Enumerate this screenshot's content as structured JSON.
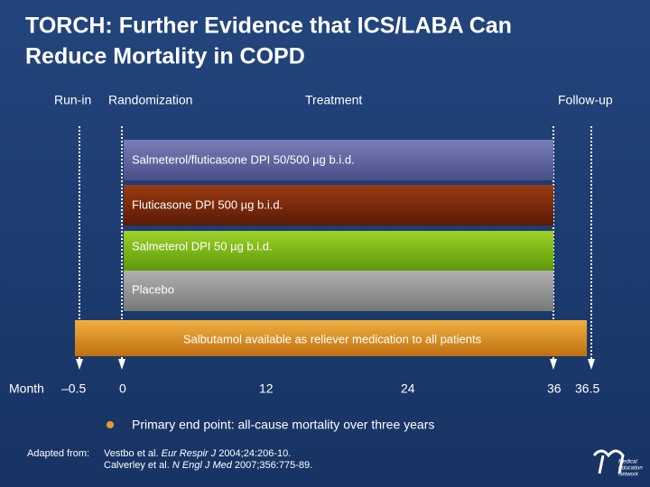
{
  "title": [
    "TORCH: Further Evidence that ICS/LABA Can",
    "Reduce Mortality in COPD"
  ],
  "phases": [
    "Run-in",
    "Randomization",
    "Treatment",
    "Follow-up"
  ],
  "arms": [
    "Salmeterol/fluticasone DPI 50/500 µg b.i.d.",
    "Fluticasone DPI 500 µg b.i.d.",
    "Salmeterol DPI 50 µg b.i.d.",
    "Placebo"
  ],
  "rescue": "Salbutamol available as reliever medication to all patients",
  "axis": {
    "label": "Month",
    "timepoints": [
      "–0.5",
      "0",
      "12",
      "24",
      "36",
      "36.5"
    ]
  },
  "endpoint": "Primary end point: all-cause mortality over three years",
  "references": {
    "label": "Adapted from:",
    "items": [
      [
        "Vestbo et al. ",
        "Eur Respir J",
        " 2004;24:206-10."
      ],
      [
        "Calverley et al. ",
        "N Engl J Med",
        " 2007;356:775-89."
      ]
    ]
  },
  "logo": [
    "Medical",
    "Education",
    "Network"
  ]
}
